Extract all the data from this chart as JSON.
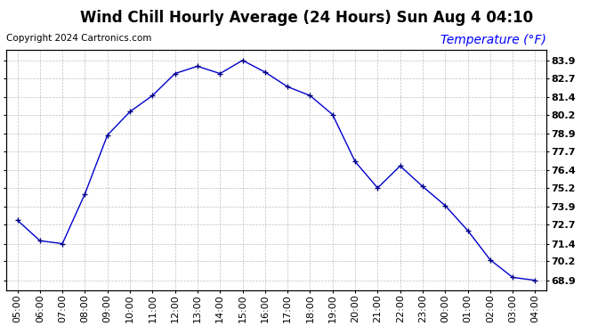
{
  "title": "Wind Chill Hourly Average (24 Hours) Sun Aug 4 04:10",
  "copyright": "Copyright 2024 Cartronics.com",
  "ylabel": "Temperature (°F)",
  "line_color": "#0000cc",
  "marker_color": "#000080",
  "background_color": "#ffffff",
  "grid_color": "#b0b0b0",
  "hours": [
    "05:00",
    "06:00",
    "07:00",
    "08:00",
    "09:00",
    "10:00",
    "11:00",
    "12:00",
    "13:00",
    "14:00",
    "15:00",
    "16:00",
    "17:00",
    "18:00",
    "19:00",
    "20:00",
    "21:00",
    "22:00",
    "23:00",
    "00:00",
    "01:00",
    "02:00",
    "03:00",
    "04:00"
  ],
  "values": [
    73.0,
    71.6,
    71.4,
    74.8,
    78.8,
    80.4,
    81.5,
    83.0,
    83.5,
    83.0,
    83.9,
    83.1,
    82.1,
    81.5,
    80.2,
    77.0,
    75.2,
    76.7,
    75.3,
    74.0,
    72.3,
    70.3,
    69.1,
    68.9
  ],
  "ylim_min": 68.2,
  "ylim_max": 84.6,
  "yticks": [
    68.9,
    70.2,
    71.4,
    72.7,
    73.9,
    75.2,
    76.4,
    77.7,
    78.9,
    80.2,
    81.4,
    82.7,
    83.9
  ],
  "title_fontsize": 12,
  "copyright_fontsize": 7.5,
  "ylabel_fontsize": 10,
  "tick_fontsize": 8
}
